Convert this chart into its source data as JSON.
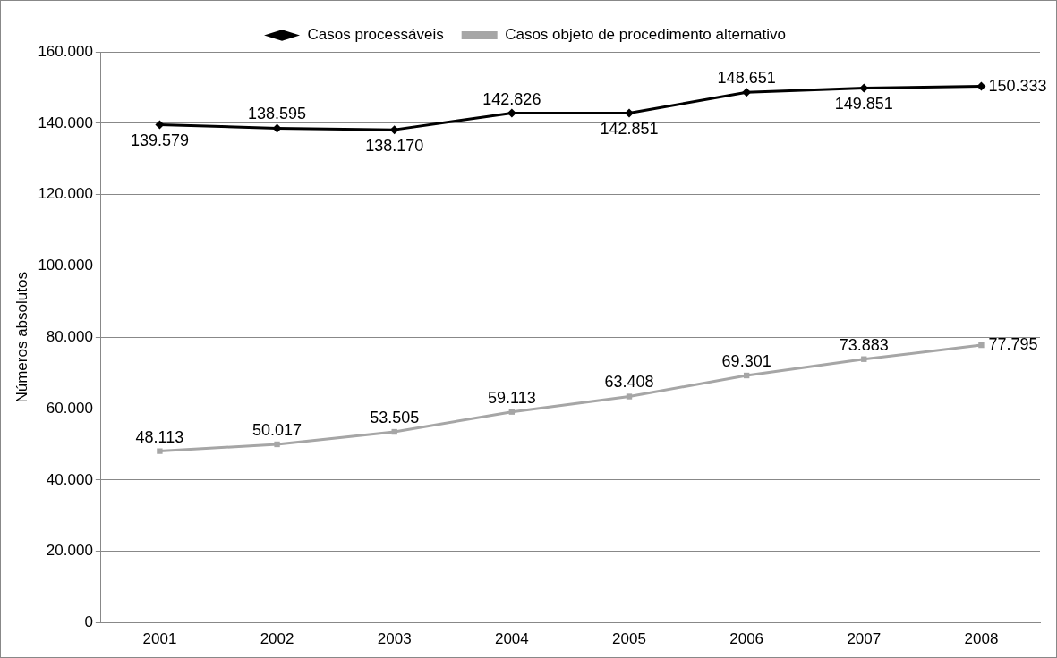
{
  "chart_data": {
    "type": "line",
    "ylabel": "Números absolutos",
    "categories": [
      "2001",
      "2002",
      "2003",
      "2004",
      "2005",
      "2006",
      "2007",
      "2008"
    ],
    "series": [
      {
        "name": "Casos processáveis",
        "color": "#000000",
        "marker": "diamond",
        "values": [
          139579,
          138595,
          138170,
          142826,
          142851,
          148651,
          149851,
          150333
        ],
        "value_labels": [
          "139.579",
          "138.595",
          "138.170",
          "142.826",
          "142.851",
          "148.651",
          "149.851",
          "150.333"
        ]
      },
      {
        "name": "Casos objeto de procedimento alternativo",
        "color": "#a6a6a6",
        "marker": "square",
        "values": [
          48113,
          50017,
          53505,
          59113,
          63408,
          69301,
          73883,
          77795
        ],
        "value_labels": [
          "48.113",
          "50.017",
          "53.505",
          "59.113",
          "63.408",
          "69.301",
          "73.883",
          "77.795"
        ]
      }
    ],
    "ylim": [
      0,
      160000
    ],
    "yticks": [
      0,
      {
        "value": 20000,
        "label": "20.000"
      },
      {
        "value": 40000,
        "label": "40.000"
      },
      {
        "value": 60000,
        "label": "60.000"
      },
      {
        "value": 80000,
        "label": "80.000"
      },
      {
        "value": 100000,
        "label": "100.000"
      },
      {
        "value": 120000,
        "label": "120.000"
      },
      {
        "value": 140000,
        "label": "140.000"
      },
      {
        "value": 160000,
        "label": "160.000"
      }
    ],
    "grid": "y",
    "legend": "top",
    "line_style": "solid"
  }
}
